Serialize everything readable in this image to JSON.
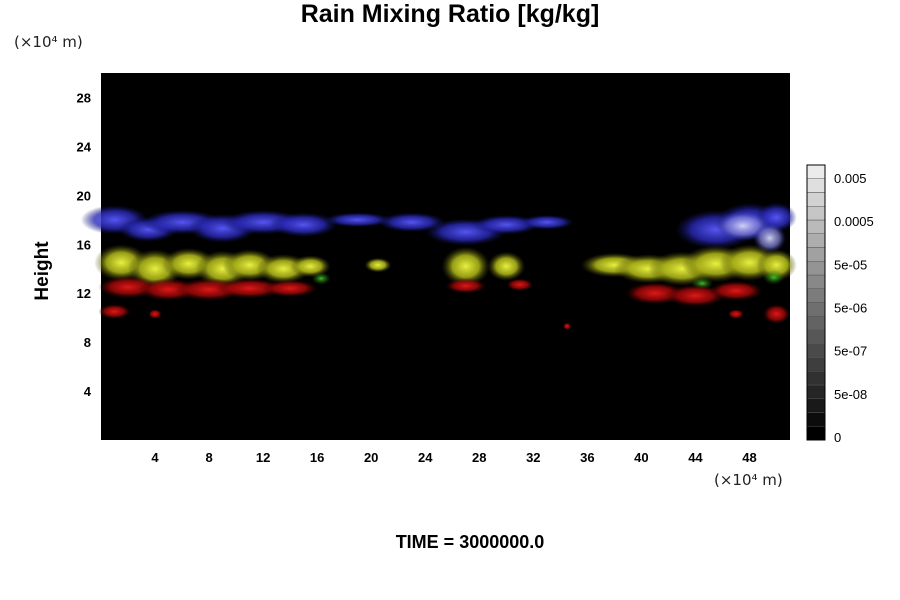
{
  "chart_data": {
    "type": "heatmap",
    "title": "Rain Mixing Ratio [kg/kg]",
    "ylabel": "Height",
    "y_unit": "(×10⁴ m)",
    "x_unit": "(×10⁴ m)",
    "x_ticks": [
      "4",
      "8",
      "12",
      "16",
      "20",
      "24",
      "28",
      "32",
      "36",
      "40",
      "44",
      "48"
    ],
    "y_ticks": [
      "4",
      "8",
      "12",
      "16",
      "20",
      "24",
      "28"
    ],
    "xlim": [
      0,
      51
    ],
    "ylim": [
      0,
      30
    ],
    "colorbar": {
      "ticks": [
        "0.005",
        "0.0005",
        "5e-05",
        "5e-06",
        "5e-07",
        "5e-08",
        "0"
      ],
      "scale": "log"
    },
    "layers": [
      {
        "color": "#3030c0",
        "y_range": [
          15.5,
          19
        ],
        "description_color": "blue"
      },
      {
        "color": "#c8d020",
        "y_range": [
          12.5,
          16
        ],
        "description_color": "yellow-green"
      },
      {
        "color": "#c01010",
        "y_range": [
          9.5,
          13
        ],
        "description_color": "red"
      }
    ],
    "background": "#000000"
  },
  "footer": "TIME = 3000000.0"
}
